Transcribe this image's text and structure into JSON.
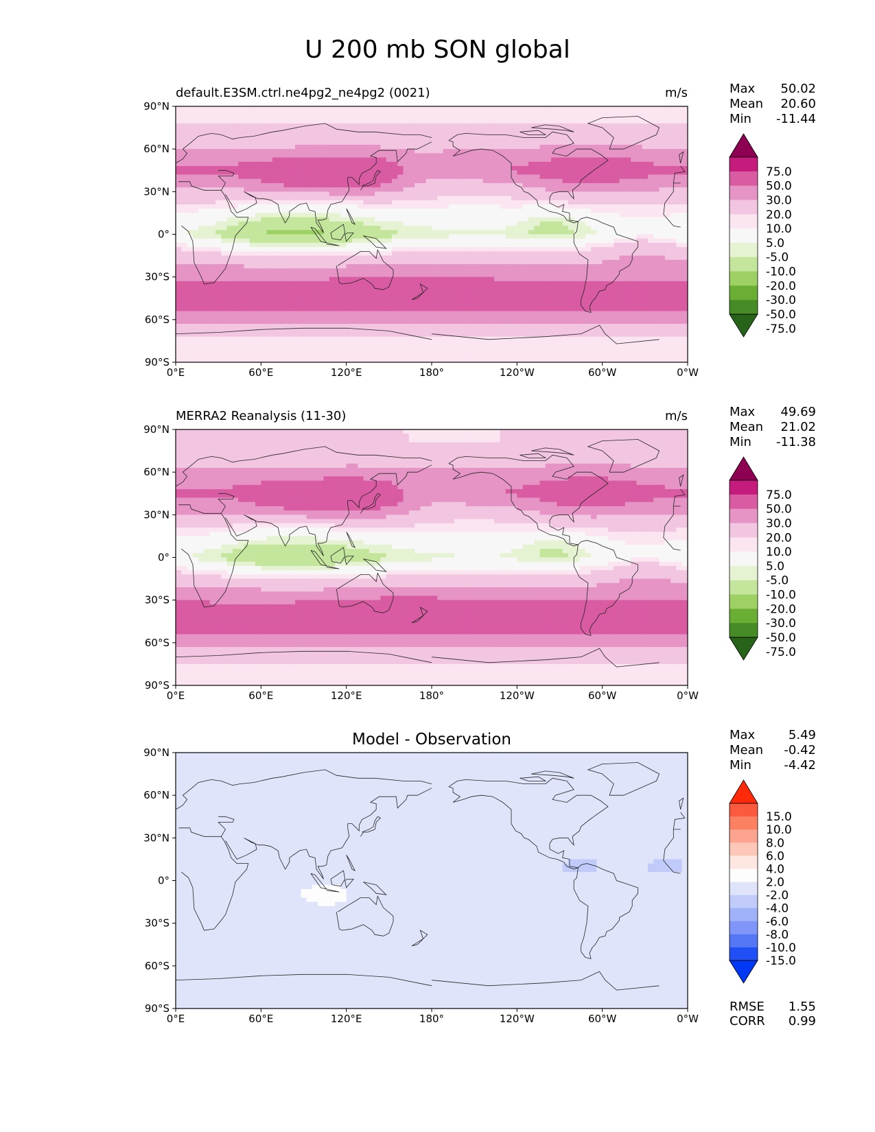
{
  "title": "U 200 mb SON global",
  "x_ticks": [
    "0°E",
    "60°E",
    "120°E",
    "180°",
    "120°W",
    "60°W",
    "0°W"
  ],
  "y_ticks": [
    "90°N",
    "60°N",
    "30°N",
    "0°",
    "30°S",
    "60°S",
    "90°S"
  ],
  "panels": [
    {
      "title_left": "default.E3SM.ctrl.ne4pg2_ne4pg2 (0021)",
      "title_center": "",
      "units": "m/s",
      "stats": [
        {
          "label": "Max",
          "value": "50.02"
        },
        {
          "label": "Mean",
          "value": "20.60"
        },
        {
          "label": "Min",
          "value": "-11.44"
        }
      ],
      "colorbar": "field",
      "footer_stats": []
    },
    {
      "title_left": "MERRA2 Reanalysis (11-30)",
      "title_center": "",
      "units": "m/s",
      "stats": [
        {
          "label": "Max",
          "value": "49.69"
        },
        {
          "label": "Mean",
          "value": "21.02"
        },
        {
          "label": "Min",
          "value": "-11.38"
        }
      ],
      "colorbar": "field",
      "footer_stats": []
    },
    {
      "title_left": "",
      "title_center": "Model - Observation",
      "units": "",
      "stats": [
        {
          "label": "Max",
          "value": "5.49"
        },
        {
          "label": "Mean",
          "value": "-0.42"
        },
        {
          "label": "Min",
          "value": "-4.42"
        }
      ],
      "colorbar": "diff",
      "footer_stats": [
        {
          "label": "RMSE",
          "value": "1.55"
        },
        {
          "label": "CORR",
          "value": "0.99"
        }
      ]
    }
  ],
  "colorbars": {
    "field": {
      "labels": [
        "75.0",
        "50.0",
        "30.0",
        "20.0",
        "10.0",
        "5.0",
        "-5.0",
        "-10.0",
        "-20.0",
        "-30.0",
        "-50.0",
        "-75.0"
      ],
      "colors_top_to_bottom": [
        "#8e0152",
        "#c51b7d",
        "#d95ba2",
        "#e594c5",
        "#f2c5e0",
        "#fbe5f1",
        "#f7f7f7",
        "#e6f3d3",
        "#c4e69c",
        "#9dd163",
        "#6aaf33",
        "#468b25",
        "#276419"
      ]
    },
    "diff": {
      "labels": [
        "15.0",
        "10.0",
        "8.0",
        "6.0",
        "4.0",
        "2.0",
        "-2.0",
        "-4.0",
        "-6.0",
        "-8.0",
        "-10.0",
        "-15.0"
      ],
      "colors_top_to_bottom": [
        "#ff2a0a",
        "#fc5a3e",
        "#fc8163",
        "#fca490",
        "#fdc7b7",
        "#fee7e0",
        "#fdfdfd",
        "#dfe4fb",
        "#c0cbf9",
        "#9fb1f8",
        "#7f95f7",
        "#5577f6",
        "#2050f5",
        "#0038f5"
      ]
    }
  },
  "chart_data": [
    {
      "type": "heatmap",
      "panel": "default.E3SM.ctrl.ne4pg2_ne4pg2 (0021)",
      "variable": "U 200 mb SON global",
      "units": "m/s",
      "x": [
        "0°E",
        "60°E",
        "120°E",
        "180°",
        "120°W",
        "60°W",
        "0°W"
      ],
      "y": [
        "90°N",
        "60°N",
        "30°N",
        "0°",
        "30°S",
        "60°S",
        "90°S"
      ],
      "levels": [
        -75,
        -50,
        -30,
        -20,
        -10,
        -5,
        5,
        10,
        20,
        30,
        50,
        75
      ],
      "approx_zonal_wind_by_lat": {
        "lat": [
          80,
          60,
          45,
          30,
          15,
          0,
          -15,
          -30,
          -45,
          -60,
          -75
        ],
        "value": [
          8,
          20,
          32,
          18,
          5,
          -6,
          15,
          28,
          40,
          22,
          8
        ]
      },
      "max": 50.02,
      "mean": 20.6,
      "min": -11.44
    },
    {
      "type": "heatmap",
      "panel": "MERRA2 Reanalysis (11-30)",
      "variable": "U 200 mb SON global",
      "units": "m/s",
      "x": [
        "0°E",
        "60°E",
        "120°E",
        "180°",
        "120°W",
        "60°W",
        "0°W"
      ],
      "y": [
        "90°N",
        "60°N",
        "30°N",
        "0°",
        "30°S",
        "60°S",
        "90°S"
      ],
      "levels": [
        -75,
        -50,
        -30,
        -20,
        -10,
        -5,
        5,
        10,
        20,
        30,
        50,
        75
      ],
      "approx_zonal_wind_by_lat": {
        "lat": [
          80,
          60,
          45,
          30,
          15,
          0,
          -15,
          -30,
          -45,
          -60,
          -75
        ],
        "value": [
          10,
          22,
          32,
          19,
          6,
          -5,
          15,
          29,
          40,
          22,
          9
        ]
      },
      "max": 49.69,
      "mean": 21.02,
      "min": -11.38
    },
    {
      "type": "heatmap",
      "panel": "Model - Observation",
      "variable": "U 200 mb SON global",
      "x": [
        "0°E",
        "60°E",
        "120°E",
        "180°",
        "120°W",
        "60°W",
        "0°W"
      ],
      "y": [
        "90°N",
        "60°N",
        "30°N",
        "0°",
        "30°S",
        "60°S",
        "90°S"
      ],
      "levels": [
        -15,
        -10,
        -8,
        -6,
        -4,
        -2,
        2,
        4,
        6,
        8,
        10,
        15
      ],
      "features": [
        {
          "lon": 105,
          "lat": -10,
          "value": 4
        },
        {
          "lon": 80,
          "lat": -57,
          "value": 2
        },
        {
          "lon": -70,
          "lat": -30,
          "value": 2
        },
        {
          "lon": -190,
          "lat": -30,
          "value": 2
        },
        {
          "lon": -75,
          "lat": 10,
          "value": -3
        },
        {
          "lon": -15,
          "lat": 10,
          "value": -3
        },
        {
          "lon": 175,
          "lat": 0,
          "value": -2
        },
        {
          "lon": 130,
          "lat": 15,
          "value": -2
        },
        {
          "lon": 130,
          "lat": -30,
          "value": -2
        },
        {
          "lon": 40,
          "lat": -85,
          "value": -2
        }
      ],
      "max": 5.49,
      "mean": -0.42,
      "min": -4.42,
      "rmse": 1.55,
      "corr": 0.99
    }
  ]
}
